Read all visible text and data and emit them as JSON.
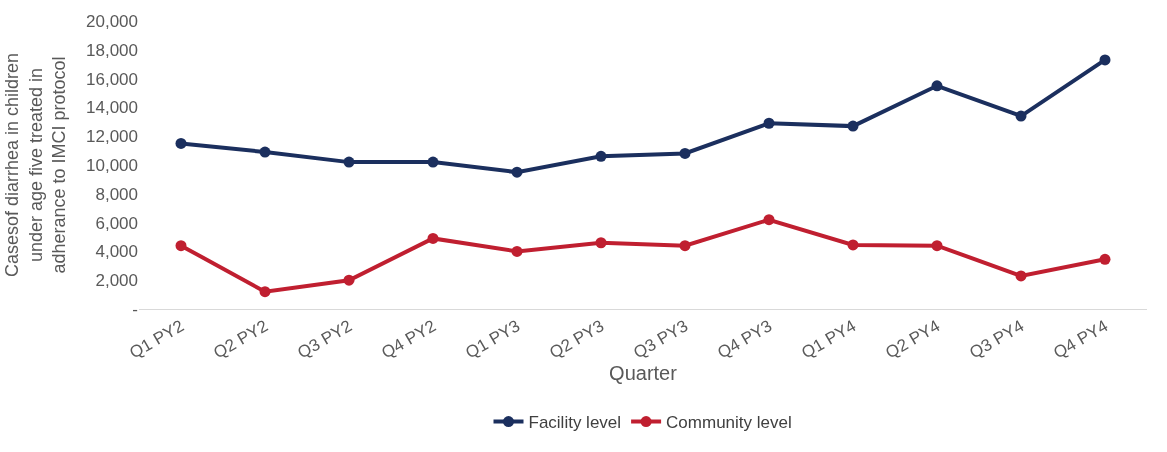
{
  "chart_data": {
    "type": "line",
    "xlabel": "Quarter",
    "ylabel": "Casesof diarrhea in children under age five treated in adherance to IMCI protocol",
    "categories": [
      "Q1 PY2",
      "Q2 PY2",
      "Q3 PY2",
      "Q4 PY2",
      "Q1 PY3",
      "Q2 PY3",
      "Q3 PY3",
      "Q4 PY3",
      "Q1 PY4",
      "Q2 PY4",
      "Q3 PY4",
      "Q4 PY4"
    ],
    "series": [
      {
        "name": "Facility level",
        "color": "#1b2f5e",
        "values": [
          11500,
          10900,
          10200,
          10200,
          9500,
          10600,
          10800,
          12900,
          12700,
          15500,
          13400,
          17300
        ]
      },
      {
        "name": "Community level",
        "color": "#c01f30",
        "values": [
          4400,
          1200,
          2000,
          4900,
          4000,
          4600,
          4400,
          6200,
          4450,
          4400,
          2300,
          3450
        ]
      }
    ],
    "ylim": [
      0,
      20000
    ],
    "yticks": [
      {
        "value": 0,
        "label": "-"
      },
      {
        "value": 2000,
        "label": "2,000"
      },
      {
        "value": 4000,
        "label": "4,000"
      },
      {
        "value": 6000,
        "label": "6,000"
      },
      {
        "value": 8000,
        "label": "8,000"
      },
      {
        "value": 10000,
        "label": "10,000"
      },
      {
        "value": 12000,
        "label": "12,000"
      },
      {
        "value": 14000,
        "label": "14,000"
      },
      {
        "value": 16000,
        "label": "16,000"
      },
      {
        "value": 18000,
        "label": "18,000"
      },
      {
        "value": 20000,
        "label": "20,000"
      }
    ],
    "grid": false,
    "legend": "bottom",
    "marker": "circle",
    "line_style": "solid"
  }
}
